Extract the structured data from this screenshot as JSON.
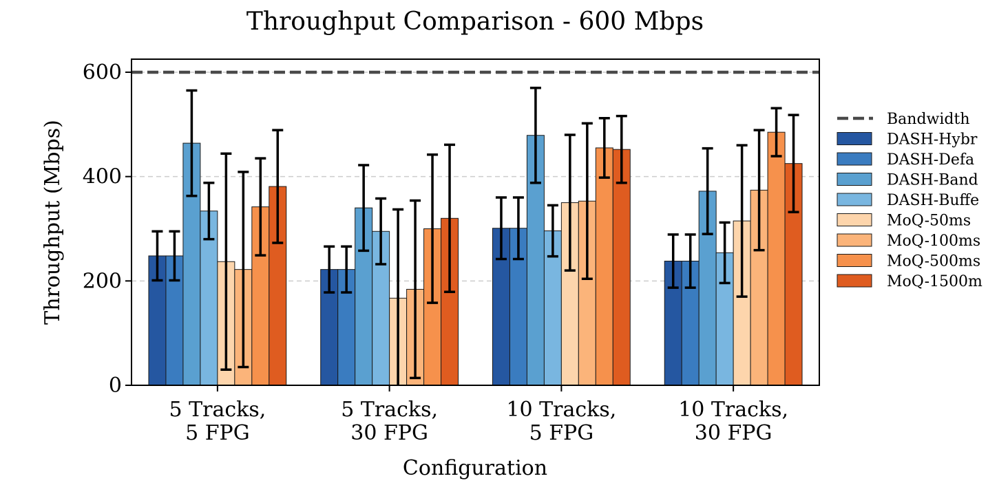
{
  "chart_data": {
    "type": "bar",
    "title": "Throughput Comparison - 600 Mbps",
    "xlabel": "Configuration",
    "ylabel": "Throughput (Mbps)",
    "ylim": [
      0,
      625
    ],
    "yticks": [
      0,
      200,
      400,
      600
    ],
    "grid": "y-dashed",
    "categories": [
      [
        "5 Tracks,",
        "5 FPG"
      ],
      [
        "5 Tracks,",
        "30 FPG"
      ],
      [
        "10 Tracks,",
        "5 FPG"
      ],
      [
        "10 Tracks,",
        "30 FPG"
      ]
    ],
    "reference_line": {
      "name": "Bandwidth",
      "value": 600,
      "color": "#4a4a4a"
    },
    "legend_position": "right-outside",
    "legend_labels": [
      "Bandwidth",
      "DASH-Hybr",
      "DASH-Defa",
      "DASH-Band",
      "DASH-Buffe",
      "MoQ-50ms",
      "MoQ-100ms",
      "MoQ-500ms",
      "MoQ-1500m"
    ],
    "series": [
      {
        "name": "DASH-Hybr",
        "color": "#2557a1",
        "values": [
          248,
          222,
          301,
          238
        ],
        "errors": [
          47,
          44,
          59,
          51
        ]
      },
      {
        "name": "DASH-Defa",
        "color": "#3a7cc0",
        "values": [
          248,
          222,
          301,
          238
        ],
        "errors": [
          47,
          44,
          59,
          51
        ]
      },
      {
        "name": "DASH-Band",
        "color": "#5aa0d0",
        "values": [
          464,
          340,
          479,
          372
        ],
        "errors": [
          101,
          82,
          91,
          82
        ]
      },
      {
        "name": "DASH-Buffe",
        "color": "#79b6e0",
        "values": [
          334,
          295,
          296,
          254
        ],
        "errors": [
          54,
          63,
          49,
          58
        ]
      },
      {
        "name": "MoQ-50ms",
        "color": "#fdd5ac",
        "values": [
          237,
          167,
          350,
          315
        ],
        "errors": [
          207,
          170,
          130,
          145
        ]
      },
      {
        "name": "MoQ-100ms",
        "color": "#fbb47a",
        "values": [
          222,
          184,
          353,
          374
        ],
        "errors": [
          187,
          170,
          149,
          115
        ]
      },
      {
        "name": "MoQ-500ms",
        "color": "#f6914c",
        "values": [
          342,
          300,
          455,
          485
        ],
        "errors": [
          93,
          142,
          57,
          46
        ]
      },
      {
        "name": "MoQ-1500m",
        "color": "#df5c20",
        "values": [
          381,
          320,
          452,
          425
        ],
        "errors": [
          108,
          141,
          64,
          93
        ]
      }
    ]
  }
}
